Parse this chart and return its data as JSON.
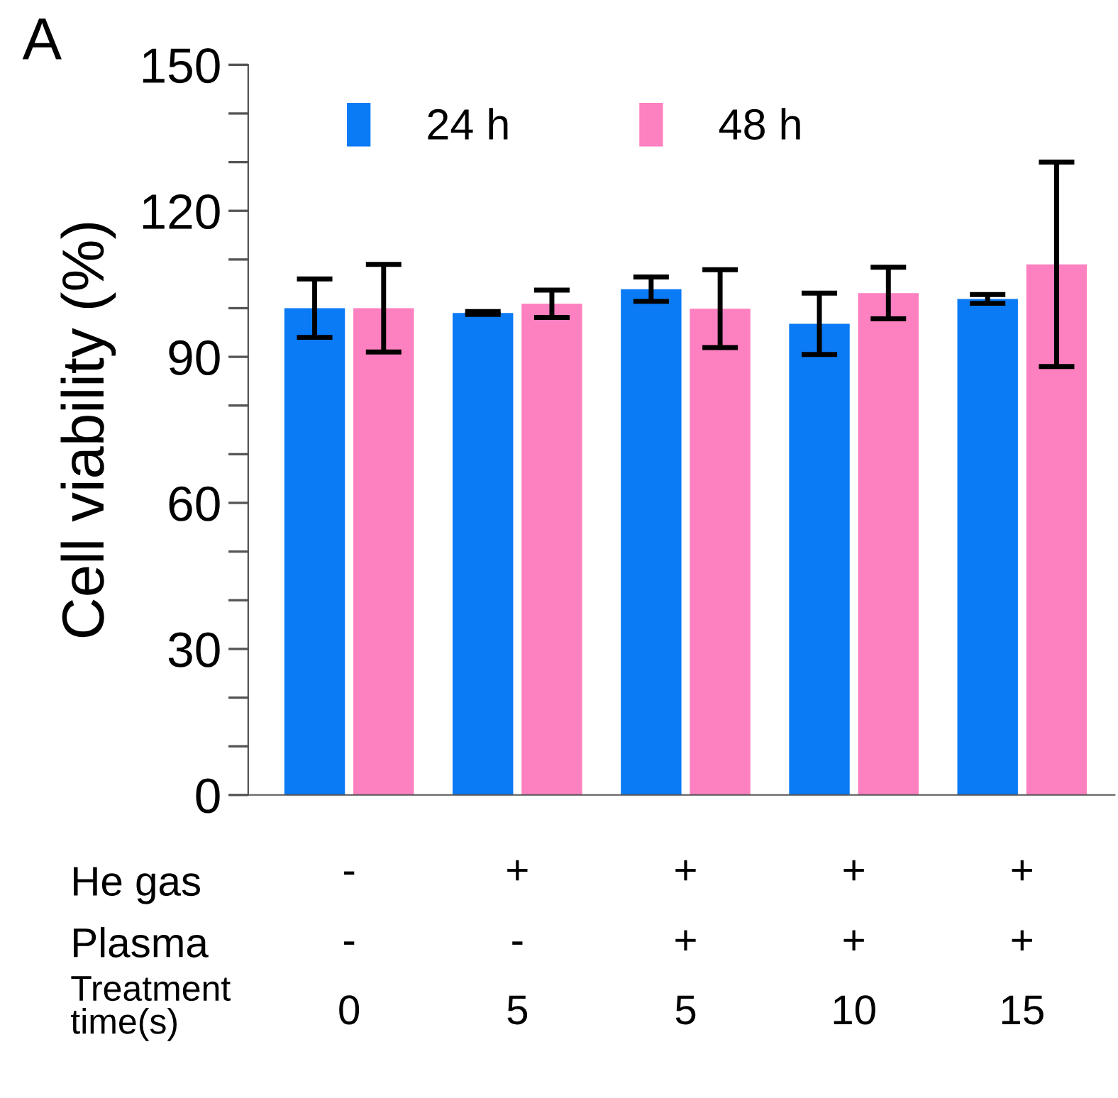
{
  "chart_data": {
    "type": "bar",
    "title": "A",
    "ylabel": "Cell viability (%)",
    "categories": [
      "-\n-\n0",
      "+\n-\n5",
      "+\n+\n5",
      "+\n+\n10",
      "+\n+\n15"
    ],
    "series": [
      {
        "name": "24 h",
        "color": "#0a7af5",
        "values": [
          100,
          99,
          103.9,
          96.8,
          101.9
        ],
        "errors": [
          6,
          0.3,
          2.5,
          6.3,
          0.9
        ]
      },
      {
        "name": "48 h",
        "color": "#fd80c0",
        "values": [
          100,
          100.9,
          99.9,
          103.1,
          109
        ],
        "errors": [
          9,
          2.8,
          8,
          5.3,
          21
        ]
      }
    ],
    "ylim": [
      0,
      150
    ],
    "yticks": [
      0,
      {
        "value": 10,
        "label": null
      },
      {
        "value": 20,
        "label": null
      },
      30,
      {
        "value": 40,
        "label": null
      },
      {
        "value": 50,
        "label": null
      },
      60,
      {
        "value": 70,
        "label": null
      },
      {
        "value": 80,
        "label": null
      },
      90,
      {
        "value": 100,
        "label": null
      },
      {
        "value": 110,
        "label": null
      },
      120,
      {
        "value": 130,
        "label": null
      },
      {
        "value": 140,
        "label": null
      },
      150
    ],
    "grid": false,
    "legend": "top left",
    "annotations": [
      "He gas",
      "Plasma",
      "Treatment\ntime(s)"
    ]
  }
}
